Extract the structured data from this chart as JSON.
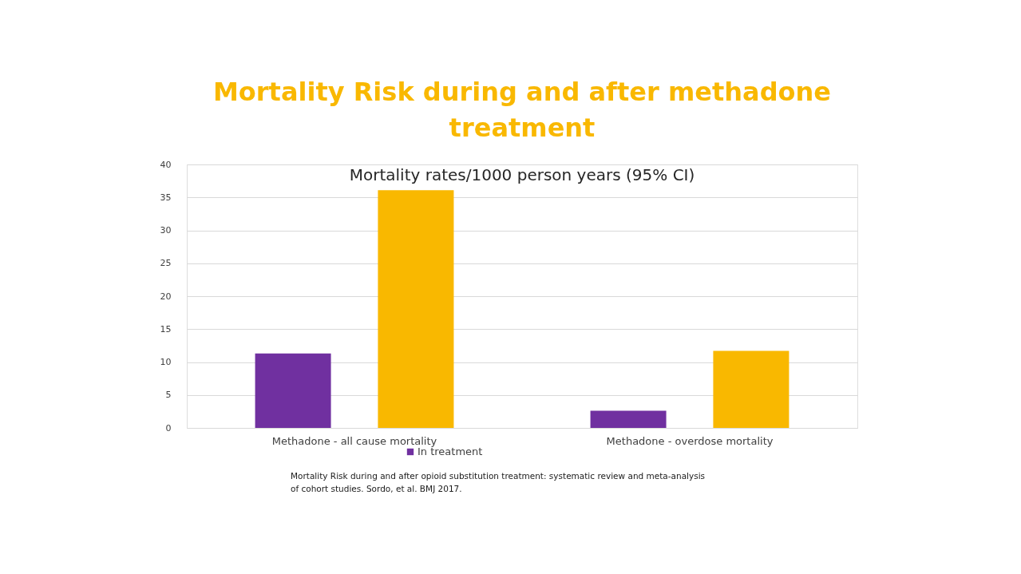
{
  "chart_data": {
    "type": "bar",
    "title": [
      "Mortality Risk during and after methadone",
      "treatment"
    ],
    "subtitle": "Mortality rates/1000 person years (95% CI)",
    "categories": [
      "Methadone - all cause mortality",
      "Methadone - overdose mortality"
    ],
    "series": [
      {
        "name": "In treatment",
        "color": "#7030a0",
        "values": [
          11.3,
          2.6
        ]
      },
      {
        "color": "#f9b800",
        "values": [
          36.1,
          11.7
        ]
      }
    ],
    "ylim": [
      0,
      40
    ],
    "yticks": [
      0,
      5,
      10,
      15,
      20,
      25,
      30,
      35,
      40
    ],
    "grid": "y",
    "legend": "bottom",
    "annotations": [
      "Mortality Risk during and after opioid substitution treatment: systematic review and meta-analysis\n of cohort studies. Sordo, et al.  BMJ 2017."
    ]
  }
}
